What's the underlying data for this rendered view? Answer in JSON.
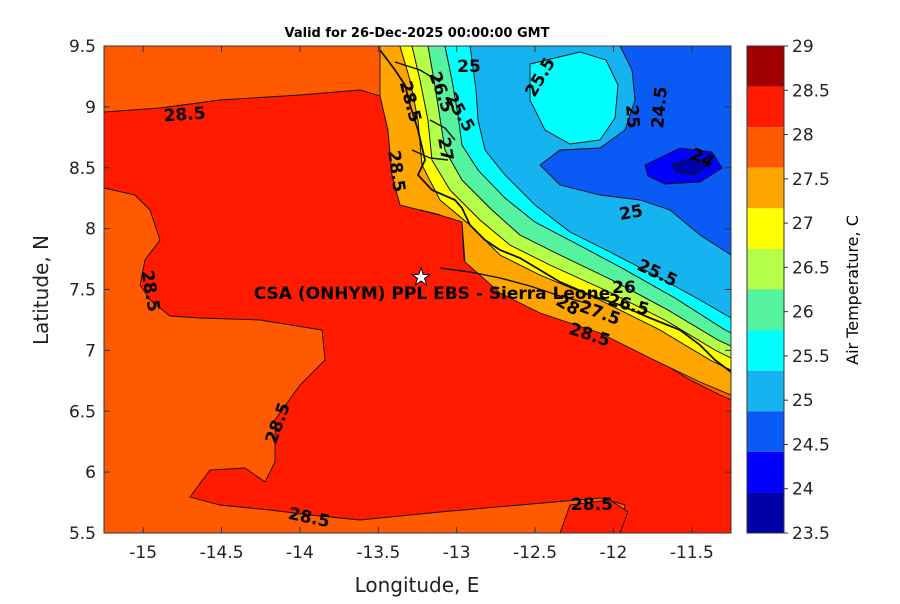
{
  "figure": {
    "title": "Valid for 26-Dec-2025 00:00:00 GMT",
    "xlabel": "Longitude, E",
    "ylabel": "Latitude, N",
    "x_ticks": [
      "-15",
      "-14.5",
      "-14",
      "-13.5",
      "-13",
      "-12.5",
      "-12",
      "-11.5"
    ],
    "y_ticks": [
      "5.5",
      "6",
      "6.5",
      "7",
      "7.5",
      "8",
      "8.5",
      "9",
      "9.5"
    ]
  },
  "colorbar": {
    "label": "Air Temperature, C",
    "ticks": [
      "29",
      "28.5",
      "28",
      "27.5",
      "27",
      "26.5",
      "26",
      "25.5",
      "25",
      "24.5",
      "24",
      "23.5"
    ],
    "colors": [
      "#a00000",
      "#ff1a00",
      "#ff5a00",
      "#ffa500",
      "#ffff00",
      "#b4ff4a",
      "#55f3a0",
      "#00ffff",
      "#15b4f0",
      "#0a5af5",
      "#0000ff",
      "#0000aa"
    ]
  },
  "marker": {
    "label": "CSA (ONHYM) PPL EBS  - Sierra Leone",
    "symbol": "★"
  },
  "contour_labels": [
    {
      "text": "28.5"
    },
    {
      "text": "28.5"
    },
    {
      "text": "28.5"
    },
    {
      "text": "28.5"
    },
    {
      "text": "28.5"
    },
    {
      "text": "28.5"
    },
    {
      "text": "28.5"
    },
    {
      "text": "25"
    },
    {
      "text": "25.5"
    },
    {
      "text": "25"
    },
    {
      "text": "24.5"
    },
    {
      "text": "24"
    },
    {
      "text": "25"
    },
    {
      "text": "25.5"
    },
    {
      "text": "26"
    },
    {
      "text": "26.5"
    },
    {
      "text": "27.5"
    },
    {
      "text": "28"
    },
    {
      "text": "25.5"
    },
    {
      "text": "26.5"
    },
    {
      "text": "28.5"
    },
    {
      "text": "27"
    }
  ]
}
